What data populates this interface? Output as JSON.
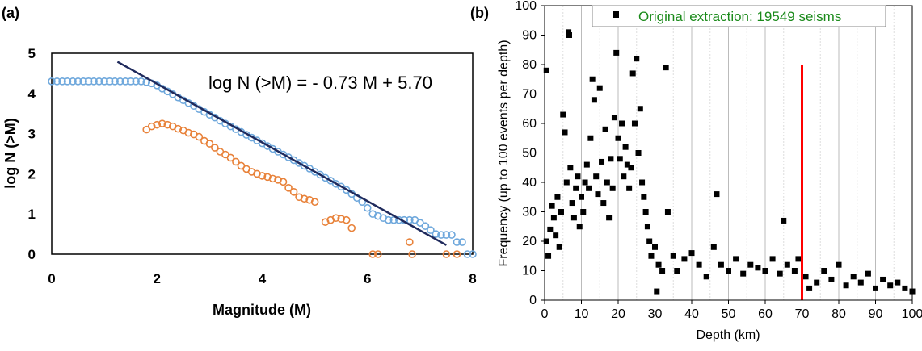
{
  "colors": {
    "fit_line": "#1f2a5c",
    "cumulative": "#6fa8dc",
    "incremental": "#e8823a",
    "depth_points": "#000000",
    "cutoff": "#ff0000",
    "legend_text": "#1a8a1a"
  },
  "chart_data": [
    {
      "type": "scatter",
      "panel_label": "(a)",
      "xlabel": "Magnitude (M)",
      "ylabel": "log N (>M)",
      "xlim": [
        0,
        8
      ],
      "ylim": [
        0,
        5
      ],
      "xticks": [
        "0",
        "2",
        "4",
        "6",
        "8"
      ],
      "yticks": [
        "0",
        "1",
        "2",
        "3",
        "4",
        "5"
      ],
      "grid": false,
      "annotation": "log N (>M) = - 0.73 M + 5.70",
      "fit_line": {
        "slope": -0.73,
        "intercept": 5.7,
        "x_from": 1.25,
        "x_to": 7.5
      },
      "series": [
        {
          "marker": "open-circle",
          "color": "#6fa8dc",
          "points": [
            [
              0,
              4.3
            ],
            [
              0.1,
              4.3
            ],
            [
              0.2,
              4.3
            ],
            [
              0.3,
              4.3
            ],
            [
              0.4,
              4.3
            ],
            [
              0.5,
              4.3
            ],
            [
              0.6,
              4.3
            ],
            [
              0.7,
              4.3
            ],
            [
              0.8,
              4.3
            ],
            [
              0.9,
              4.3
            ],
            [
              1.0,
              4.3
            ],
            [
              1.1,
              4.3
            ],
            [
              1.2,
              4.3
            ],
            [
              1.3,
              4.3
            ],
            [
              1.4,
              4.3
            ],
            [
              1.5,
              4.3
            ],
            [
              1.6,
              4.3
            ],
            [
              1.7,
              4.3
            ],
            [
              1.8,
              4.28
            ],
            [
              1.9,
              4.25
            ],
            [
              2.0,
              4.2
            ],
            [
              2.1,
              4.12
            ],
            [
              2.2,
              4.05
            ],
            [
              2.3,
              3.98
            ],
            [
              2.4,
              3.9
            ],
            [
              2.5,
              3.83
            ],
            [
              2.6,
              3.76
            ],
            [
              2.7,
              3.69
            ],
            [
              2.8,
              3.61
            ],
            [
              2.9,
              3.54
            ],
            [
              3.0,
              3.47
            ],
            [
              3.1,
              3.4
            ],
            [
              3.2,
              3.32
            ],
            [
              3.3,
              3.25
            ],
            [
              3.4,
              3.18
            ],
            [
              3.5,
              3.11
            ],
            [
              3.6,
              3.04
            ],
            [
              3.7,
              2.97
            ],
            [
              3.8,
              2.9
            ],
            [
              3.9,
              2.83
            ],
            [
              4.0,
              2.76
            ],
            [
              4.1,
              2.69
            ],
            [
              4.2,
              2.62
            ],
            [
              4.3,
              2.55
            ],
            [
              4.4,
              2.48
            ],
            [
              4.5,
              2.41
            ],
            [
              4.6,
              2.34
            ],
            [
              4.7,
              2.27
            ],
            [
              4.8,
              2.2
            ],
            [
              4.9,
              2.13
            ],
            [
              5.0,
              2.05
            ],
            [
              5.1,
              1.98
            ],
            [
              5.2,
              1.9
            ],
            [
              5.3,
              1.83
            ],
            [
              5.4,
              1.75
            ],
            [
              5.5,
              1.68
            ],
            [
              5.6,
              1.6
            ],
            [
              5.7,
              1.5
            ],
            [
              5.8,
              1.4
            ],
            [
              5.9,
              1.3
            ],
            [
              6.0,
              1.15
            ],
            [
              6.1,
              1.0
            ],
            [
              6.2,
              0.95
            ],
            [
              6.3,
              0.9
            ],
            [
              6.4,
              0.85
            ],
            [
              6.5,
              0.85
            ],
            [
              6.6,
              0.85
            ],
            [
              6.7,
              0.85
            ],
            [
              6.8,
              0.85
            ],
            [
              6.9,
              0.85
            ],
            [
              7.0,
              0.78
            ],
            [
              7.1,
              0.7
            ],
            [
              7.2,
              0.6
            ],
            [
              7.3,
              0.5
            ],
            [
              7.4,
              0.48
            ],
            [
              7.5,
              0.48
            ],
            [
              7.6,
              0.48
            ],
            [
              7.7,
              0.3
            ],
            [
              7.8,
              0.3
            ],
            [
              7.9,
              0.0
            ],
            [
              8.0,
              0.0
            ]
          ]
        },
        {
          "marker": "open-circle",
          "color": "#e8823a",
          "points": [
            [
              1.8,
              3.1
            ],
            [
              1.9,
              3.18
            ],
            [
              2.0,
              3.22
            ],
            [
              2.1,
              3.25
            ],
            [
              2.2,
              3.22
            ],
            [
              2.3,
              3.18
            ],
            [
              2.4,
              3.12
            ],
            [
              2.5,
              3.08
            ],
            [
              2.6,
              3.02
            ],
            [
              2.7,
              2.98
            ],
            [
              2.8,
              2.92
            ],
            [
              2.9,
              2.82
            ],
            [
              3.0,
              2.75
            ],
            [
              3.1,
              2.65
            ],
            [
              3.2,
              2.55
            ],
            [
              3.3,
              2.48
            ],
            [
              3.4,
              2.4
            ],
            [
              3.5,
              2.3
            ],
            [
              3.6,
              2.2
            ],
            [
              3.7,
              2.12
            ],
            [
              3.8,
              2.05
            ],
            [
              3.9,
              2.0
            ],
            [
              4.0,
              1.95
            ],
            [
              4.1,
              1.92
            ],
            [
              4.2,
              1.88
            ],
            [
              4.3,
              1.85
            ],
            [
              4.4,
              1.8
            ],
            [
              4.5,
              1.65
            ],
            [
              4.6,
              1.55
            ],
            [
              4.7,
              1.42
            ],
            [
              4.8,
              1.38
            ],
            [
              4.9,
              1.35
            ],
            [
              5.0,
              1.3
            ],
            [
              5.2,
              0.8
            ],
            [
              5.3,
              0.85
            ],
            [
              5.4,
              0.9
            ],
            [
              5.5,
              0.88
            ],
            [
              5.6,
              0.85
            ],
            [
              5.7,
              0.65
            ],
            [
              6.1,
              0.0
            ],
            [
              6.2,
              0.0
            ],
            [
              6.8,
              0.3
            ],
            [
              6.85,
              0.0
            ],
            [
              7.5,
              0.0
            ],
            [
              7.7,
              0.0
            ]
          ]
        }
      ]
    },
    {
      "type": "scatter",
      "panel_label": "(b)",
      "xlabel": "Depth (km)",
      "ylabel": "Frequency (up to 100 events per depth)",
      "xlim": [
        0,
        100
      ],
      "ylim": [
        0,
        100
      ],
      "xticks": [
        "0",
        "10",
        "20",
        "30",
        "40",
        "50",
        "60",
        "70",
        "80",
        "90",
        "100"
      ],
      "yticks": [
        "0",
        "10",
        "20",
        "30",
        "40",
        "50",
        "60",
        "70",
        "80",
        "90",
        "100"
      ],
      "grid": true,
      "legend": {
        "label": "Original extraction: 19549 seisms",
        "position": "top-right"
      },
      "cutoff_line": {
        "x": 70,
        "y_from": 0,
        "y_to": 80
      },
      "series": [
        {
          "name": "Original extraction: 19549 seisms",
          "marker": "filled-square",
          "color": "#000000",
          "points": [
            [
              0.5,
              78
            ],
            [
              0.5,
              20
            ],
            [
              1,
              15
            ],
            [
              1.5,
              24
            ],
            [
              2,
              32
            ],
            [
              2.5,
              28
            ],
            [
              3,
              22
            ],
            [
              3.5,
              35
            ],
            [
              4,
              18
            ],
            [
              4.5,
              30
            ],
            [
              5,
              63
            ],
            [
              5.5,
              57
            ],
            [
              6,
              40
            ],
            [
              6.5,
              91
            ],
            [
              6.7,
              90
            ],
            [
              7,
              45
            ],
            [
              7.5,
              33
            ],
            [
              8,
              28
            ],
            [
              8.5,
              38
            ],
            [
              9,
              42
            ],
            [
              9.5,
              25
            ],
            [
              10,
              35
            ],
            [
              10.5,
              30
            ],
            [
              11,
              40
            ],
            [
              11.5,
              46
            ],
            [
              12,
              38
            ],
            [
              12.5,
              55
            ],
            [
              13,
              75
            ],
            [
              13.5,
              68
            ],
            [
              14,
              42
            ],
            [
              14.5,
              36
            ],
            [
              15,
              72
            ],
            [
              15.5,
              47
            ],
            [
              16,
              33
            ],
            [
              16.5,
              58
            ],
            [
              17,
              40
            ],
            [
              17.5,
              28
            ],
            [
              18,
              48
            ],
            [
              18.5,
              38
            ],
            [
              19,
              62
            ],
            [
              19.5,
              84
            ],
            [
              20,
              55
            ],
            [
              20.5,
              48
            ],
            [
              21,
              60
            ],
            [
              21.5,
              42
            ],
            [
              22,
              52
            ],
            [
              22.5,
              46
            ],
            [
              23,
              38
            ],
            [
              23.5,
              45
            ],
            [
              24,
              77
            ],
            [
              24.5,
              60
            ],
            [
              25,
              82
            ],
            [
              25.5,
              50
            ],
            [
              26,
              65
            ],
            [
              26.5,
              40
            ],
            [
              27,
              35
            ],
            [
              27.5,
              30
            ],
            [
              28,
              25
            ],
            [
              28.5,
              20
            ],
            [
              29,
              15
            ],
            [
              30,
              18
            ],
            [
              30.5,
              3
            ],
            [
              31,
              12
            ],
            [
              32,
              10
            ],
            [
              33,
              79
            ],
            [
              33.5,
              30
            ],
            [
              35,
              15
            ],
            [
              36,
              10
            ],
            [
              38,
              14
            ],
            [
              40,
              16
            ],
            [
              42,
              12
            ],
            [
              44,
              8
            ],
            [
              46,
              18
            ],
            [
              46.8,
              36
            ],
            [
              48,
              12
            ],
            [
              50,
              10
            ],
            [
              52,
              14
            ],
            [
              54,
              9
            ],
            [
              56,
              12
            ],
            [
              58,
              11
            ],
            [
              60,
              10
            ],
            [
              62,
              14
            ],
            [
              64,
              9
            ],
            [
              65,
              27
            ],
            [
              66,
              12
            ],
            [
              68,
              10
            ],
            [
              69,
              14
            ],
            [
              71,
              8
            ],
            [
              72,
              4
            ],
            [
              74,
              6
            ],
            [
              76,
              10
            ],
            [
              78,
              7
            ],
            [
              80,
              12
            ],
            [
              82,
              5
            ],
            [
              84,
              8
            ],
            [
              86,
              6
            ],
            [
              88,
              9
            ],
            [
              90,
              4
            ],
            [
              92,
              7
            ],
            [
              94,
              5
            ],
            [
              96,
              6
            ],
            [
              98,
              4
            ],
            [
              100,
              3
            ]
          ]
        }
      ]
    }
  ]
}
